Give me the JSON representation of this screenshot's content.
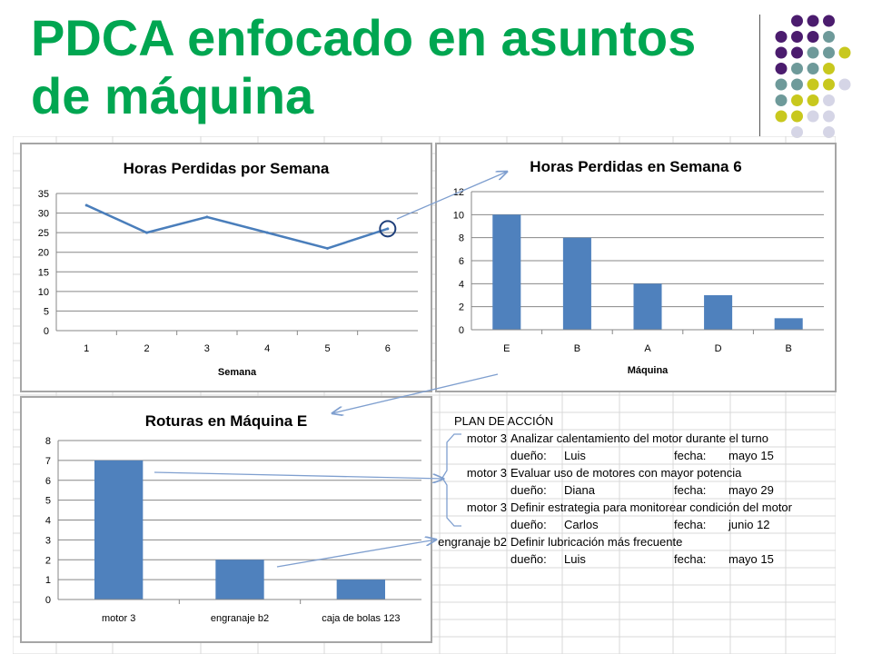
{
  "slide": {
    "title": "PDCA enfocado en asuntos de máquina"
  },
  "chart_data": [
    {
      "type": "line",
      "title": "Horas Perdidas por Semana",
      "xlabel": "Semana",
      "ylabel": "",
      "categories": [
        "1",
        "2",
        "3",
        "4",
        "5",
        "6"
      ],
      "values": [
        32,
        25,
        29,
        25,
        21,
        26
      ],
      "ylim": [
        0,
        35
      ],
      "yticks": [
        0,
        5,
        10,
        15,
        20,
        25,
        30,
        35
      ],
      "grid": true,
      "legend": "none",
      "highlight_category": "6",
      "color": "#4a7ebb"
    },
    {
      "type": "bar",
      "title": "Horas Perdidas en Semana 6",
      "xlabel": "Máquina",
      "ylabel": "",
      "categories": [
        "E",
        "B",
        "A",
        "D",
        "B"
      ],
      "values": [
        10,
        8,
        4,
        3,
        1
      ],
      "ylim": [
        0,
        12
      ],
      "yticks": [
        0,
        2,
        4,
        6,
        8,
        10,
        12
      ],
      "grid": true,
      "legend": "none",
      "color": "#4f81bd"
    },
    {
      "type": "bar",
      "title": "Roturas en Máquina E",
      "xlabel": "",
      "ylabel": "",
      "categories": [
        "motor 3",
        "engranaje  b2",
        "caja de bolas 123"
      ],
      "values": [
        7,
        2,
        1
      ],
      "ylim": [
        0,
        8
      ],
      "yticks": [
        0,
        1,
        2,
        3,
        4,
        5,
        6,
        7,
        8
      ],
      "grid": true,
      "legend": "none",
      "color": "#4f81bd"
    }
  ],
  "plan": {
    "title": "PLAN DE ACCIÓN",
    "owner_label": "dueño:",
    "date_label": "fecha:",
    "items": [
      {
        "machine": "motor 3",
        "action": "Analizar calentamiento del motor durante el turno",
        "owner": "Luis",
        "date": "mayo 15"
      },
      {
        "machine": "motor 3",
        "action": "Evaluar uso de motores con mayor potencia",
        "owner": "Diana",
        "date": "mayo 29"
      },
      {
        "machine": "motor 3",
        "action": "Definir estrategia para monitorear condición del motor",
        "owner": "Carlos",
        "date": "junio 12"
      },
      {
        "machine": "engranaje b2",
        "action": "Definir lubricación más frecuente",
        "owner": "Luis",
        "date": "mayo 15"
      }
    ]
  },
  "colors": {
    "title": "#00a651",
    "dot_purple": "#4b1c6e",
    "dot_teal": "#6e9a9a",
    "dot_yellow": "#c8c81e",
    "dot_lavender": "#d5d5e6",
    "arrow": "#7f9fcf"
  }
}
